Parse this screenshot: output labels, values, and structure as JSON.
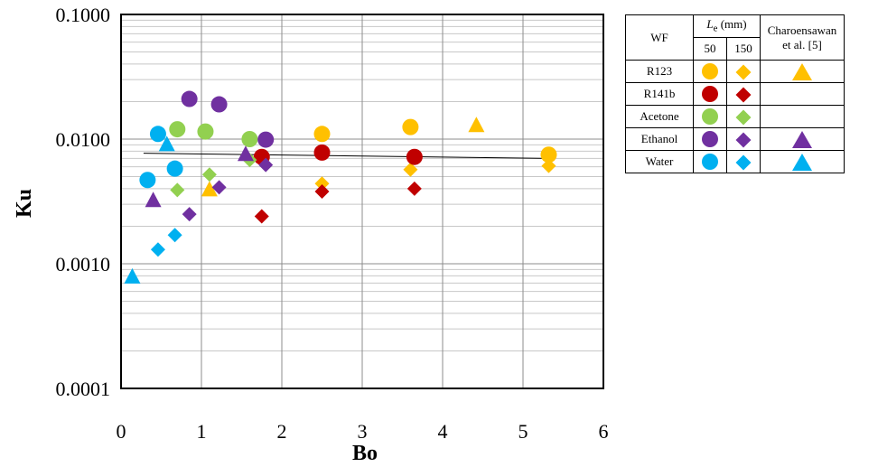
{
  "chart_data": {
    "type": "scatter",
    "xlabel": "Bo",
    "ylabel": "Ku",
    "xlim": [
      0,
      6
    ],
    "ylim": [
      0.0001,
      0.1
    ],
    "yscale": "log",
    "x_ticks": [
      "0",
      "1",
      "2",
      "3",
      "4",
      "5",
      "6"
    ],
    "y_ticks": [
      "0.0001",
      "0.0010",
      "0.0100",
      "0.1000"
    ],
    "grid": true,
    "legend_position": "right",
    "series": [
      {
        "fluid": "R123",
        "le": "50",
        "marker": "circle",
        "color": "#ffc000",
        "points": [
          [
            2.5,
            0.011
          ],
          [
            3.6,
            0.0125
          ],
          [
            5.32,
            0.0075
          ]
        ]
      },
      {
        "fluid": "R123",
        "le": "150",
        "marker": "diamond",
        "color": "#ffc000",
        "points": [
          [
            2.5,
            0.0044
          ],
          [
            3.6,
            0.0057
          ],
          [
            5.32,
            0.0061
          ]
        ]
      },
      {
        "fluid": "R123",
        "le": "ref",
        "marker": "triangle",
        "color": "#ffc000",
        "points": [
          [
            1.1,
            0.0039
          ],
          [
            4.42,
            0.0128
          ]
        ]
      },
      {
        "fluid": "R141b",
        "le": "50",
        "marker": "circle",
        "color": "#c00000",
        "points": [
          [
            1.75,
            0.0072
          ],
          [
            2.5,
            0.0078
          ],
          [
            3.65,
            0.0072
          ]
        ]
      },
      {
        "fluid": "R141b",
        "le": "150",
        "marker": "diamond",
        "color": "#c00000",
        "points": [
          [
            1.75,
            0.0024
          ],
          [
            2.5,
            0.0038
          ],
          [
            3.65,
            0.004
          ]
        ]
      },
      {
        "fluid": "Acetone",
        "le": "50",
        "marker": "circle",
        "color": "#92d050",
        "points": [
          [
            0.7,
            0.012
          ],
          [
            1.05,
            0.0115
          ],
          [
            1.6,
            0.01
          ]
        ]
      },
      {
        "fluid": "Acetone",
        "le": "150",
        "marker": "diamond",
        "color": "#92d050",
        "points": [
          [
            0.7,
            0.0039
          ],
          [
            1.1,
            0.0052
          ],
          [
            1.6,
            0.0068
          ]
        ]
      },
      {
        "fluid": "Ethanol",
        "le": "50",
        "marker": "circle",
        "color": "#7030a0",
        "points": [
          [
            0.85,
            0.021
          ],
          [
            1.22,
            0.019
          ],
          [
            1.8,
            0.0099
          ]
        ]
      },
      {
        "fluid": "Ethanol",
        "le": "150",
        "marker": "diamond",
        "color": "#7030a0",
        "points": [
          [
            0.85,
            0.0025
          ],
          [
            1.22,
            0.0041
          ],
          [
            1.8,
            0.0062
          ]
        ]
      },
      {
        "fluid": "Ethanol",
        "le": "ref",
        "marker": "triangle",
        "color": "#7030a0",
        "points": [
          [
            0.4,
            0.0032
          ],
          [
            1.55,
            0.0075
          ]
        ]
      },
      {
        "fluid": "Water",
        "le": "50",
        "marker": "circle",
        "color": "#00b0f0",
        "points": [
          [
            0.33,
            0.0047
          ],
          [
            0.46,
            0.011
          ],
          [
            0.67,
            0.0058
          ]
        ]
      },
      {
        "fluid": "Water",
        "le": "150",
        "marker": "diamond",
        "color": "#00b0f0",
        "points": [
          [
            0.46,
            0.0013
          ],
          [
            0.67,
            0.0017
          ]
        ]
      },
      {
        "fluid": "Water",
        "le": "ref",
        "marker": "triangle",
        "color": "#00b0f0",
        "points": [
          [
            0.14,
            0.00078
          ],
          [
            0.57,
            0.009
          ]
        ]
      }
    ],
    "trendline": {
      "x": [
        0.28,
        5.32
      ],
      "y": [
        0.0077,
        0.007
      ],
      "color": "#000000"
    }
  },
  "legend": {
    "wf_header": "WF",
    "le_symbol": "L",
    "le_subscript": "e",
    "le_unit": " (mm)",
    "col_50": "50",
    "col_150": "150",
    "ref_header_line1": "Charoensawan",
    "ref_header_line2": "et al. [5]",
    "rows": [
      {
        "name": "R123",
        "color": "#ffc000",
        "ref": true
      },
      {
        "name": "R141b",
        "color": "#c00000",
        "ref": false
      },
      {
        "name": "Acetone",
        "color": "#92d050",
        "ref": false
      },
      {
        "name": "Ethanol",
        "color": "#7030a0",
        "ref": true
      },
      {
        "name": "Water",
        "color": "#00b0f0",
        "ref": true
      }
    ]
  }
}
